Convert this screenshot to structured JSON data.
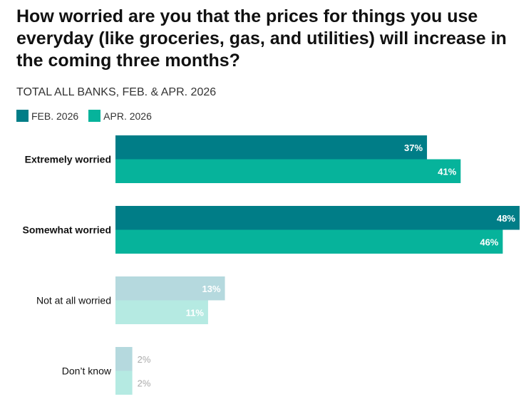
{
  "chart_data": {
    "type": "bar",
    "orientation": "horizontal",
    "title": "How worried are you that the prices for things you use everyday (like groceries, gas, and utilities) will increase in the coming three months?",
    "subtitle": "TOTAL ALL BANKS, FEB. & APR. 2026",
    "categories": [
      "Extremely worried",
      "Somewhat worried",
      "Not at all worried",
      "Don’t know"
    ],
    "series": [
      {
        "name": "FEB. 2026",
        "values": [
          37,
          48,
          13,
          2
        ],
        "labels": [
          "37%",
          "48%",
          "13%",
          "2%"
        ],
        "color": "#007d87"
      },
      {
        "name": "APR. 2026",
        "values": [
          41,
          46,
          11,
          2
        ],
        "labels": [
          "41%",
          "46%",
          "11%",
          "2%"
        ],
        "color": "#06b39b"
      }
    ],
    "muted_colors": {
      "FEB. 2026": "#b5d9de",
      "APR. 2026": "#b5eae2"
    },
    "bold_categories": [
      "Extremely worried",
      "Somewhat worried"
    ],
    "legend_position": "top-left",
    "xlim": [
      0,
      48
    ],
    "grid": false
  }
}
